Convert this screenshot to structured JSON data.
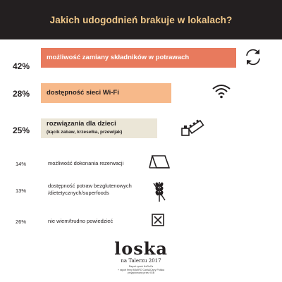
{
  "chart_data": {
    "type": "bar",
    "orientation": "horizontal",
    "title": "Jakich udogodnień brakuje w lokalach?",
    "categories": [
      "możliwość zamiany składników w potrawach",
      "dostępność sieci Wi-Fi",
      "rozwiązania dla dzieci",
      "możliwość dokonania rezerwacji",
      "dostępność potraw bezglutenowych /dietetycznych/superfoods",
      "nie wiem/trudno powiedzieć"
    ],
    "values": [
      42,
      28,
      25,
      14,
      13,
      26
    ],
    "value_labels": [
      "42%",
      "28%",
      "25%",
      "14%",
      "13%",
      "26%"
    ],
    "subtitles": [
      "",
      "",
      "(kącik zabaw, krzesełka, przewijak)",
      "",
      "",
      ""
    ],
    "label_lines": [
      [
        "możliwość zamiany składników w potrawach"
      ],
      [
        "dostępność sieci Wi-Fi"
      ],
      [
        "rozwiązania dla dzieci"
      ],
      [
        "możliwość dokonania rezerwacji"
      ],
      [
        "dostępność potraw bezglutenowych",
        "/dietetycznych/superfoods"
      ],
      [
        "nie wiem/trudno powiedzieć"
      ]
    ],
    "bars_drawn": [
      true,
      true,
      true,
      false,
      false,
      false
    ],
    "xlim": [
      0,
      42
    ],
    "colors": [
      "#e87a5d",
      "#f7b98a",
      "#ebe6d7"
    ],
    "icons": [
      "refresh-icon",
      "wifi-icon",
      "toy-blocks-icon",
      "reservation-card-icon",
      "wheat-crossed-icon",
      "checkbox-x-icon"
    ]
  },
  "logo": {
    "word_left": "lo",
    "word_right": "ska",
    "line2": "na Talerzu 2017",
    "fine1": "Raport rynek HoReCa",
    "fine2": "+ raport firmy MAKRO Cash&Carry Polska",
    "fine3": "przygotowany przez IGB"
  }
}
